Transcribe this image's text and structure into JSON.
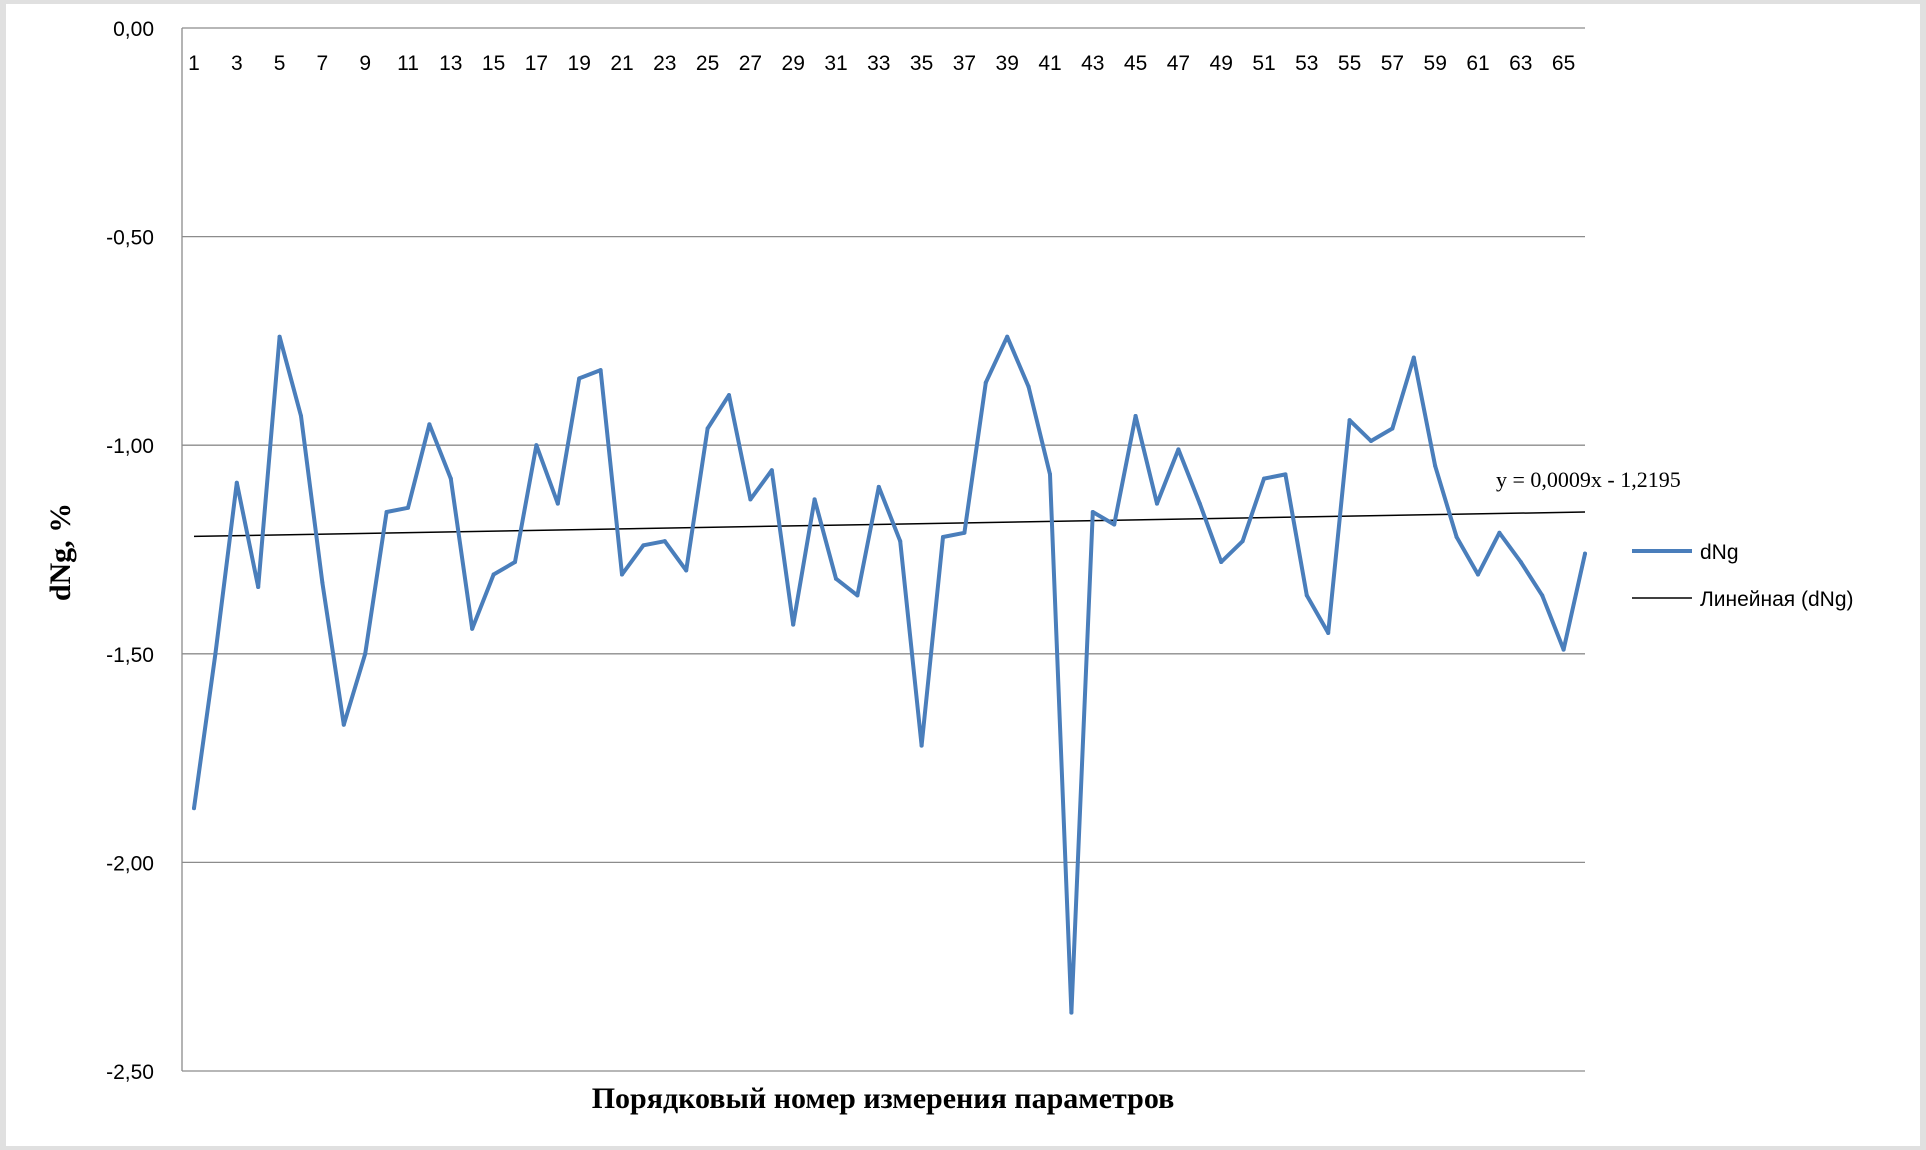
{
  "chart_data": {
    "type": "line",
    "title": "",
    "xlabel": "Порядковый номер измерения параметров",
    "ylabel": "dNg, %",
    "x": [
      1,
      2,
      3,
      4,
      5,
      6,
      7,
      8,
      9,
      10,
      11,
      12,
      13,
      14,
      15,
      16,
      17,
      18,
      19,
      20,
      21,
      22,
      23,
      24,
      25,
      26,
      27,
      28,
      29,
      30,
      31,
      32,
      33,
      34,
      35,
      36,
      37,
      38,
      39,
      40,
      41,
      42,
      43,
      44,
      45,
      46,
      47,
      48,
      49,
      50,
      51,
      52,
      53,
      54,
      55,
      56,
      57,
      58,
      59,
      60,
      61,
      62,
      63,
      64,
      65,
      66
    ],
    "x_tick_labels": [
      "1",
      "3",
      "5",
      "7",
      "9",
      "11",
      "13",
      "15",
      "17",
      "19",
      "21",
      "23",
      "25",
      "27",
      "29",
      "31",
      "33",
      "35",
      "37",
      "39",
      "41",
      "43",
      "45",
      "47",
      "49",
      "51",
      "53",
      "55",
      "57",
      "59",
      "61",
      "63",
      "65"
    ],
    "x_axis_position": "top",
    "ylim": [
      -2.5,
      0
    ],
    "y_ticks": [
      0,
      -0.5,
      -1,
      -1.5,
      -2,
      -2.5
    ],
    "y_tick_labels": [
      "0,00",
      "-0,50",
      "-1,00",
      "-1,50",
      "-2,00",
      "-2,50"
    ],
    "grid": "horizontal",
    "legend_position": "right",
    "series": [
      {
        "name": "dNg",
        "color": "#4a7ebb",
        "values": [
          -1.87,
          -1.5,
          -1.09,
          -1.34,
          -0.74,
          -0.93,
          -1.33,
          -1.67,
          -1.5,
          -1.16,
          -1.15,
          -0.95,
          -1.08,
          -1.44,
          -1.31,
          -1.28,
          -1.0,
          -1.14,
          -0.84,
          -0.82,
          -1.31,
          -1.24,
          -1.23,
          -1.3,
          -0.96,
          -0.88,
          -1.13,
          -1.06,
          -1.43,
          -1.13,
          -1.32,
          -1.36,
          -1.1,
          -1.23,
          -1.72,
          -1.22,
          -1.21,
          -0.85,
          -0.74,
          -0.86,
          -1.07,
          -2.36,
          -1.16,
          -1.19,
          -0.93,
          -1.14,
          -1.01,
          -1.14,
          -1.28,
          -1.23,
          -1.08,
          -1.07,
          -1.36,
          -1.45,
          -0.94,
          -0.99,
          -0.96,
          -0.79,
          -1.05,
          -1.22,
          -1.31,
          -1.21,
          -1.28,
          -1.36,
          -1.49,
          -1.26
        ]
      },
      {
        "name": "Линейная (dNg)",
        "color": "#000000",
        "trendline": true,
        "slope": 0.0009,
        "intercept": -1.2195,
        "equation": "y = 0,0009x - 1,2195"
      }
    ]
  }
}
